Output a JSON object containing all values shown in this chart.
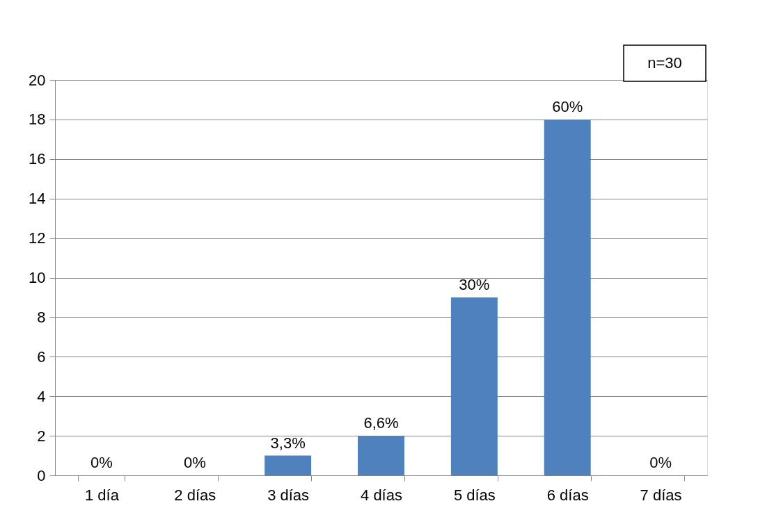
{
  "chart_data": {
    "type": "bar",
    "categories": [
      "1 día",
      "2 días",
      "3 días",
      "4 días",
      "5 días",
      "6 días",
      "7 días"
    ],
    "values": [
      0,
      0,
      1,
      2,
      9,
      18,
      0
    ],
    "color": "#4f81bd",
    "ylim": [
      0,
      20
    ],
    "yticks": [
      0,
      2,
      4,
      6,
      8,
      10,
      12,
      14,
      16,
      18,
      20
    ],
    "grid": "y",
    "annotations": [
      "n=30",
      {
        "text": "0%",
        "x": "1 día",
        "y": 0
      },
      {
        "text": "0%",
        "x": "2 días",
        "y": 0
      },
      {
        "text": "3,3%",
        "x": "3 días",
        "y": 1
      },
      {
        "text": "6,6%",
        "x": "4 días",
        "y": 2
      },
      {
        "text": "30%",
        "x": "5 días",
        "y": 9
      },
      {
        "text": "60%",
        "x": "6 días",
        "y": 18
      },
      {
        "text": "0%",
        "x": "7 días",
        "y": 0
      }
    ]
  }
}
